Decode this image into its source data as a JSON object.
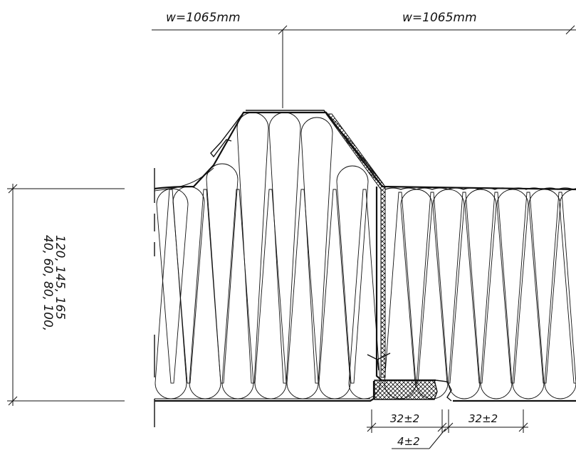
{
  "dimensions": {
    "width_left": "w=1065mm",
    "width_right": "w=1065mm",
    "thickness_line1": "40, 60, 80, 100,",
    "thickness_line2": "120, 145, 165",
    "gap_left": "32±2",
    "gap_right": "32±2",
    "joint_offset": "4±2"
  }
}
